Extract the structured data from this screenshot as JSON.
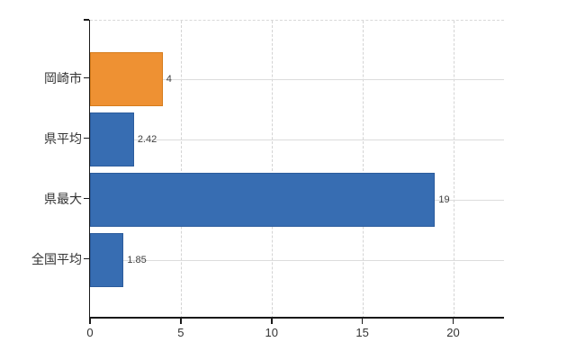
{
  "chart_data": {
    "type": "bar",
    "orientation": "horizontal",
    "title": "",
    "xlabel": "",
    "ylabel": "",
    "categories": [
      "岡崎市",
      "県平均",
      "県最大",
      "全国平均"
    ],
    "values": [
      4,
      2.42,
      19,
      1.85
    ],
    "value_labels": [
      "4",
      "2.42",
      "19",
      "1.85"
    ],
    "bar_colors": [
      "#ee9133",
      "#376db2",
      "#376db2",
      "#376db2"
    ],
    "bar_border_colors": [
      "#d57c1c",
      "#2c5c9c",
      "#2c5c9c",
      "#2c5c9c"
    ],
    "x_tick_labels": [
      "0",
      "5",
      "10",
      "15",
      "20"
    ],
    "x_tick_values": [
      0,
      5,
      10,
      15,
      20
    ],
    "xlim": [
      0,
      22.8
    ],
    "grid": true,
    "legend_position": "none",
    "colors": {
      "axis": "#1a1a1a",
      "grid_vertical": "#d4d4d4",
      "grid_horizontal": "#dcdcdc",
      "category_label": "#333333",
      "value_label": "#404040",
      "tick_label": "#333333",
      "background": "#ffffff"
    }
  }
}
